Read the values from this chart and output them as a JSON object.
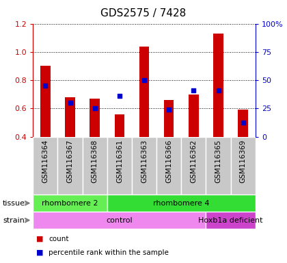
{
  "title": "GDS2575 / 7428",
  "samples": [
    "GSM116364",
    "GSM116367",
    "GSM116368",
    "GSM116361",
    "GSM116363",
    "GSM116366",
    "GSM116362",
    "GSM116365",
    "GSM116369"
  ],
  "count_values": [
    0.9,
    0.68,
    0.67,
    0.56,
    1.04,
    0.66,
    0.7,
    1.13,
    0.59
  ],
  "percentile_values": [
    0.76,
    0.64,
    0.6,
    0.69,
    0.8,
    0.59,
    0.73,
    0.73,
    0.5
  ],
  "ymin": 0.4,
  "ymax": 1.2,
  "yticks_left": [
    0.4,
    0.6,
    0.8,
    1.0,
    1.2
  ],
  "right_yticks_pct": [
    0,
    25,
    50,
    75,
    100
  ],
  "right_ytick_labels": [
    "0",
    "25",
    "50",
    "75",
    "100%"
  ],
  "bar_color": "#cc0000",
  "dot_color": "#0000cc",
  "tissue_groups": [
    {
      "text": "rhombomere 2",
      "start": 0,
      "end": 3,
      "color": "#66ee55"
    },
    {
      "text": "rhombomere 4",
      "start": 3,
      "end": 9,
      "color": "#33dd33"
    }
  ],
  "strain_groups": [
    {
      "text": "control",
      "start": 0,
      "end": 7,
      "color": "#ee88ee"
    },
    {
      "text": "Hoxb1a deficient",
      "start": 7,
      "end": 9,
      "color": "#cc44cc"
    }
  ],
  "legend_items": [
    {
      "label": "count",
      "color": "#cc0000"
    },
    {
      "label": "percentile rank within the sample",
      "color": "#0000cc"
    }
  ],
  "tick_color_left": "#cc0000",
  "tick_color_right": "#0000cc",
  "sample_bg_color": "#c8c8c8",
  "tissue_label": "tissue",
  "strain_label": "strain"
}
